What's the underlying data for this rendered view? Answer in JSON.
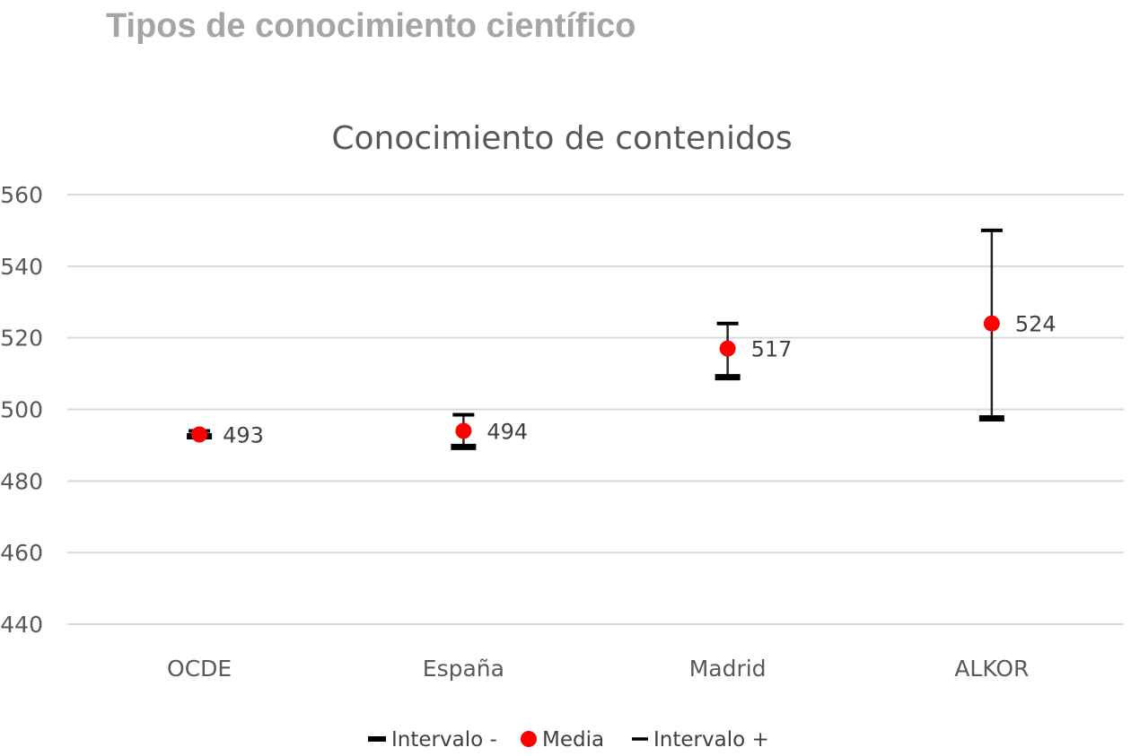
{
  "page_title": "Tipos de conocimiento científico",
  "chart_data": {
    "type": "scatter",
    "title": "Conocimiento de contenidos",
    "xlabel": "",
    "ylabel": "",
    "categories": [
      "OCDE",
      "España",
      "Madrid",
      "ALKOR"
    ],
    "series": [
      {
        "name": "Intervalo -",
        "values": [
          492.5,
          489.5,
          509,
          497.5
        ],
        "color": "#000000",
        "marker": "dash-thick"
      },
      {
        "name": "Media",
        "values": [
          493,
          494,
          517,
          524
        ],
        "color": "#ff0000",
        "marker": "circle"
      },
      {
        "name": "Intervalo +",
        "values": [
          494,
          498.5,
          524,
          550
        ],
        "color": "#000000",
        "marker": "dash"
      }
    ],
    "data_labels": [
      "493",
      "494",
      "517",
      "524"
    ],
    "ylim": [
      440,
      560
    ],
    "yticks": [
      440,
      460,
      480,
      500,
      520,
      540,
      560
    ],
    "grid": true,
    "error_bar_color": "#262626",
    "legend_position": "bottom"
  }
}
